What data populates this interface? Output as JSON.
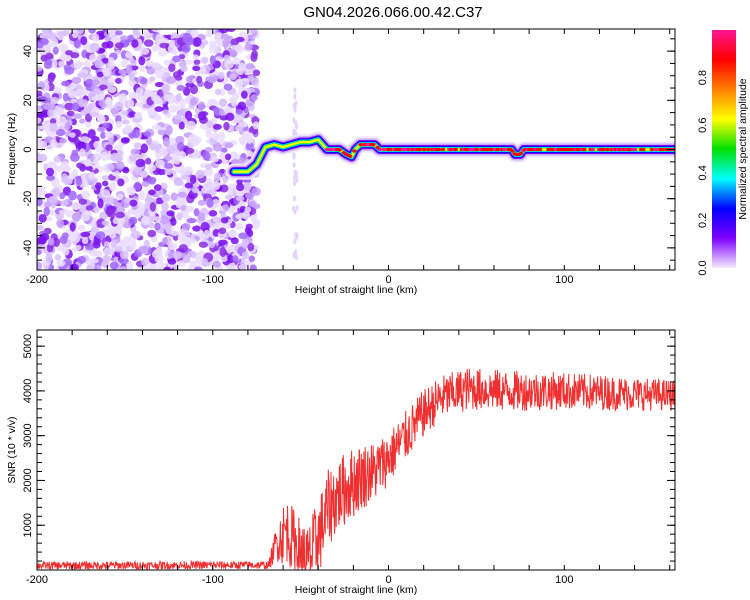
{
  "title": "GN04.2026.066.00.42.C37",
  "chart_data": [
    {
      "type": "heatmap",
      "name": "spectrogram",
      "xlabel": "Height of straight line (km)",
      "ylabel": "Frequency (Hz)",
      "xlim": [
        -200,
        163
      ],
      "ylim": [
        -49,
        49
      ],
      "xticks": [
        -200,
        -100,
        0,
        100
      ],
      "xtick_labels": [
        "-200",
        "-100",
        "0",
        "100"
      ],
      "yticks": [
        -40,
        -20,
        0,
        20,
        40
      ],
      "ytick_labels": [
        "-40",
        "-20",
        "0",
        "20",
        "40"
      ],
      "noise_region_x": [
        -200,
        -75
      ],
      "ridge": {
        "x": [
          -88,
          -80,
          -75,
          -70,
          -65,
          -60,
          -55,
          -50,
          -45,
          -40,
          -35,
          -28,
          -24,
          -21,
          -19,
          -16,
          -12,
          -8,
          -5,
          70,
          72,
          75,
          77,
          163
        ],
        "freq": [
          -9,
          -9,
          -6,
          1,
          2,
          1,
          2,
          3,
          3,
          4,
          0,
          0,
          -2,
          -3,
          0,
          2,
          2,
          2,
          0,
          0,
          -2,
          -2,
          0,
          0
        ]
      },
      "colorbar": {
        "label": "Normalized spectral amplitude",
        "range": [
          0,
          1
        ],
        "ticks": [
          0.0,
          0.2,
          0.4,
          0.6,
          0.8
        ],
        "tick_labels": [
          "0.0",
          "0.2",
          "0.4",
          "0.6",
          "0.8"
        ],
        "colors": [
          "#f4ecff",
          "#8000ff",
          "#0000ff",
          "#00ffff",
          "#00e000",
          "#ffff00",
          "#ff8000",
          "#ff0000",
          "#ff1493"
        ]
      }
    },
    {
      "type": "line",
      "name": "snr",
      "xlabel": "Height of straight line (km)",
      "ylabel": "SNR (10 * v/v)",
      "xlim": [
        -200,
        163
      ],
      "ylim": [
        0,
        5360
      ],
      "xticks": [
        -200,
        -100,
        0,
        100
      ],
      "xtick_labels": [
        "-200",
        "-100",
        "0",
        "100"
      ],
      "yticks": [
        1000,
        2000,
        3000,
        4000,
        5000
      ],
      "ytick_labels": [
        "1000",
        "2000",
        "3000",
        "4000",
        "5000"
      ],
      "color": "#f03030",
      "mean_trend": {
        "x": [
          -200,
          -68,
          -64,
          -58,
          -52,
          -46,
          -40,
          -34,
          -28,
          -22,
          -15,
          -8,
          0,
          10,
          20,
          30,
          45,
          70,
          100,
          130,
          163
        ],
        "y": [
          100,
          110,
          600,
          900,
          500,
          150,
          700,
          1400,
          1700,
          1900,
          2100,
          2200,
          2500,
          3000,
          3500,
          3850,
          4050,
          4000,
          4000,
          3950,
          3900
        ]
      },
      "noise_amplitude": {
        "x": [
          -200,
          -68,
          -60,
          -40,
          -20,
          0,
          30,
          163
        ],
        "y": [
          90,
          90,
          700,
          900,
          800,
          600,
          500,
          350
        ]
      }
    }
  ]
}
